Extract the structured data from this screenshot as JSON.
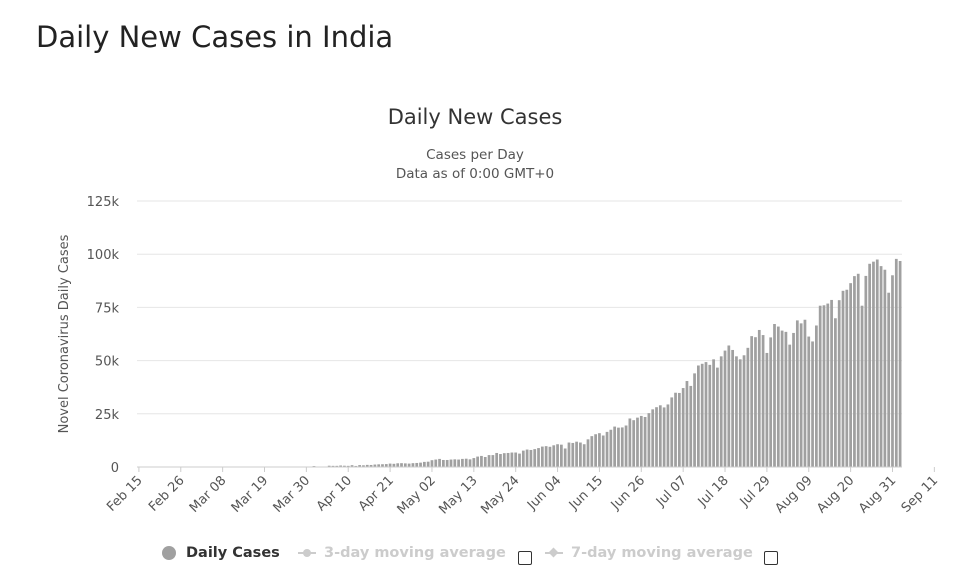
{
  "page": {
    "title": "Daily New Cases in India"
  },
  "chart_data": {
    "type": "bar",
    "title": "Daily New Cases",
    "subtitle_line1": "Cases per Day",
    "subtitle_line2": "Data as of 0:00 GMT+0",
    "ylabel": "Novel Coronavirus Daily Cases",
    "ylim": [
      0,
      125000
    ],
    "yticks": [
      0,
      25000,
      50000,
      75000,
      100000,
      125000
    ],
    "ytick_labels": [
      "0",
      "25k",
      "50k",
      "75k",
      "100k",
      "125k"
    ],
    "x_tick_labels": [
      "Feb 15",
      "Feb 26",
      "Mar 08",
      "Mar 19",
      "Mar 30",
      "Apr 10",
      "Apr 21",
      "May 02",
      "May 13",
      "May 24",
      "Jun 04",
      "Jun 15",
      "Jun 26",
      "Jul 07",
      "Jul 18",
      "Jul 29",
      "Aug 09",
      "Aug 20",
      "Aug 31",
      "Sep 11"
    ],
    "x_start_date": "2020-02-15",
    "x_end_date": "2020-09-18",
    "bar_color": "#a0a0a0",
    "grid": true,
    "legend_position": "bottom",
    "series": [
      {
        "name": "Daily Cases",
        "values": [
          0,
          0,
          0,
          0,
          0,
          0,
          0,
          0,
          0,
          0,
          0,
          0,
          0,
          0,
          0,
          0,
          0,
          1,
          0,
          0,
          0,
          0,
          22,
          2,
          1,
          3,
          5,
          4,
          6,
          8,
          10,
          12,
          12,
          12,
          14,
          22,
          18,
          35,
          25,
          30,
          60,
          75,
          80,
          87,
          146,
          230,
          437,
          106,
          227,
          146,
          601,
          545,
          540,
          700,
          600,
          540,
          850,
          500,
          900,
          800,
          990,
          950,
          1150,
          1250,
          1300,
          1370,
          1600,
          1500,
          1740,
          1800,
          1700,
          1600,
          1800,
          1900,
          2050,
          2400,
          2500,
          3200,
          3500,
          3800,
          3300,
          3300,
          3500,
          3600,
          3500,
          3800,
          3900,
          3600,
          4200,
          4900,
          5200,
          4700,
          5600,
          5600,
          6600,
          6100,
          6500,
          6600,
          6800,
          6800,
          6300,
          7700,
          8200,
          8000,
          8400,
          8900,
          9600,
          9800,
          9500,
          10200,
          10700,
          10500,
          8700,
          11500,
          11300,
          11900,
          11500,
          10700,
          13000,
          14500,
          15400,
          15900,
          14800,
          16500,
          17500,
          19000,
          18500,
          18600,
          19500,
          22800,
          22000,
          23200,
          24000,
          23500,
          25300,
          27100,
          28100,
          29000,
          28000,
          29400,
          32700,
          34900,
          34800,
          37100,
          40400,
          38100,
          44000,
          47700,
          48500,
          49300,
          48000,
          50600,
          46700,
          52000,
          54700,
          57100,
          55000,
          52000,
          50600,
          52500,
          56000,
          61500,
          61000,
          64400,
          62000,
          53600,
          60900,
          67200,
          66000,
          64100,
          63500,
          57500,
          63000,
          68900,
          67500,
          69200,
          61300,
          59000,
          66500,
          75800,
          76000,
          76800,
          78500,
          69900,
          78400,
          82800,
          83300,
          86400,
          89700,
          90800,
          75800,
          89800,
          95500,
          96500,
          97500,
          94400,
          92700,
          81900,
          90100,
          97800,
          96800
        ]
      }
    ]
  },
  "legend": {
    "items": [
      {
        "label": "Daily Cases",
        "active": true
      },
      {
        "label": "3-day moving average",
        "active": false
      },
      {
        "label": "7-day moving average",
        "active": false
      }
    ]
  }
}
